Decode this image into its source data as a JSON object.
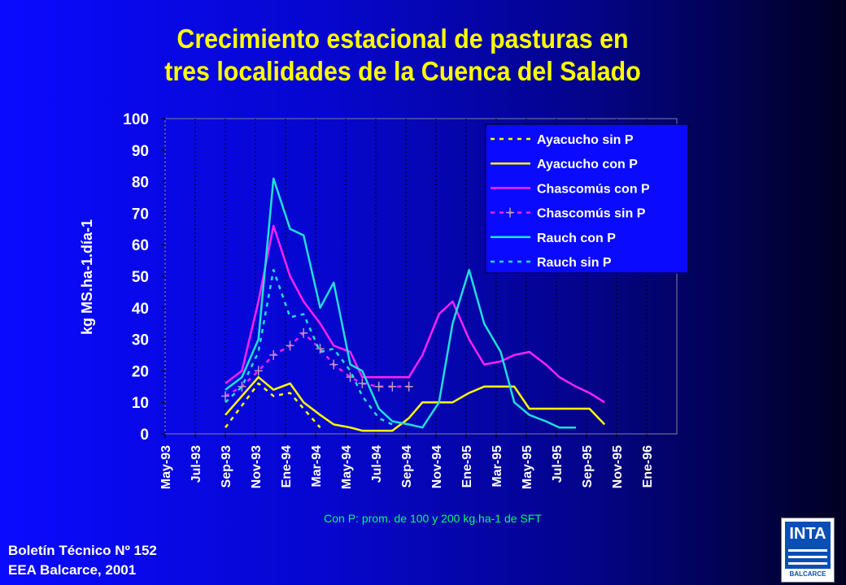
{
  "title_line1": "Crecimiento estacional de pasturas en",
  "title_line2": "tres localidades de la Cuenca del Salado",
  "footnote": "Con P: prom. de 100 y 200 kg.ha-1 de SFT",
  "footer_line1": "Boletín Técnico Nº 152",
  "footer_line2": "EEA Balcarce, 2001",
  "logo": {
    "text": "INTA",
    "subtext": "BALCARCE"
  },
  "chart_data": {
    "type": "line",
    "ylabel": "kg MS.ha-1.día-1",
    "xlabel": "",
    "ylim": [
      0,
      100
    ],
    "yticks": [
      0,
      10,
      20,
      30,
      40,
      50,
      60,
      70,
      80,
      90,
      100
    ],
    "x_tick_labels": [
      "May-93",
      "Jul-93",
      "Sep-93",
      "Nov-93",
      "Ene-94",
      "Mar-94",
      "May-94",
      "Jul-94",
      "Sep-94",
      "Nov-94",
      "Ene-95",
      "Mar-95",
      "May-95",
      "Jul-95",
      "Sep-95",
      "Nov-95",
      "Ene-96"
    ],
    "x_tick_months": [
      0,
      2,
      4,
      6,
      8,
      10,
      12,
      14,
      16,
      18,
      20,
      22,
      24,
      26,
      28,
      30,
      32
    ],
    "x_unit": "months since May-93",
    "xlim": [
      0,
      34
    ],
    "legend_position": "top-right",
    "grid": "vertical",
    "series": [
      {
        "name": "Ayacucho sin P",
        "color": "#ffff00",
        "dash": "5,6",
        "x": [
          4.0,
          5.1,
          6.2,
          7.2,
          8.3,
          9.2,
          10.3
        ],
        "y": [
          2,
          9,
          16,
          12,
          13,
          8,
          2
        ]
      },
      {
        "name": "Ayacucho con P",
        "color": "#ffff00",
        "dash": "",
        "x": [
          4.0,
          5.1,
          6.2,
          7.2,
          8.3,
          9.2,
          10.3,
          11.2,
          12.3,
          13.1,
          14.2,
          15.1,
          16.2,
          17.1,
          18.2,
          19.1,
          20.2,
          21.2,
          22.3,
          23.2,
          24.2,
          25.3,
          26.2,
          27.3,
          28.2,
          29.2
        ],
        "y": [
          6,
          12,
          18,
          14,
          16,
          10,
          6,
          3,
          2,
          1,
          1,
          1,
          5,
          10,
          10,
          10,
          13,
          15,
          15,
          15,
          8,
          8,
          8,
          8,
          8,
          3
        ]
      },
      {
        "name": "Chascomús con P",
        "color": "#ff22ff",
        "dash": "",
        "x": [
          4.0,
          5.1,
          6.2,
          7.2,
          8.3,
          9.2,
          10.3,
          11.2,
          12.3,
          13.1,
          14.2,
          15.1,
          16.2,
          17.1,
          18.2,
          19.1,
          20.2,
          21.2,
          22.3,
          23.2,
          24.2,
          25.3,
          26.2,
          27.3,
          28.2,
          29.2
        ],
        "y": [
          16,
          20,
          42,
          66,
          50,
          42,
          35,
          28,
          26,
          18,
          18,
          18,
          18,
          25,
          38,
          42,
          30,
          22,
          23,
          25,
          26,
          22,
          18,
          15,
          13,
          10
        ]
      },
      {
        "name": "Chascomús sin P",
        "color": "#ff22ff",
        "dash": "5,6",
        "marker": "plus",
        "x": [
          4.0,
          5.1,
          6.2,
          7.2,
          8.3,
          9.2,
          10.3,
          11.2,
          12.3,
          13.1,
          14.2,
          15.1,
          16.2
        ],
        "y": [
          12,
          15,
          20,
          25,
          28,
          32,
          27,
          22,
          18,
          16,
          15,
          15,
          15
        ]
      },
      {
        "name": "Rauch con P",
        "color": "#22dddd",
        "dash": "",
        "x": [
          4.0,
          5.1,
          6.2,
          7.2,
          8.3,
          9.2,
          10.3,
          11.2,
          12.3,
          13.1,
          14.2,
          15.1,
          16.2,
          17.1,
          18.2,
          19.1,
          20.2,
          21.2,
          22.3,
          23.2,
          24.2,
          25.3,
          26.2,
          27.3
        ],
        "y": [
          14,
          18,
          30,
          81,
          65,
          63,
          40,
          48,
          22,
          20,
          8,
          4,
          3,
          2,
          10,
          35,
          52,
          35,
          26,
          10,
          6,
          4,
          2,
          2
        ]
      },
      {
        "name": "Rauch sin P",
        "color": "#22dddd",
        "dash": "5,6",
        "x": [
          4.0,
          5.1,
          6.2,
          7.2,
          8.3,
          9.2,
          10.3,
          11.2,
          12.3,
          13.1,
          14.2,
          15.1
        ],
        "y": [
          10,
          15,
          26,
          52,
          37,
          38,
          26,
          27,
          20,
          12,
          5,
          3
        ]
      }
    ]
  }
}
